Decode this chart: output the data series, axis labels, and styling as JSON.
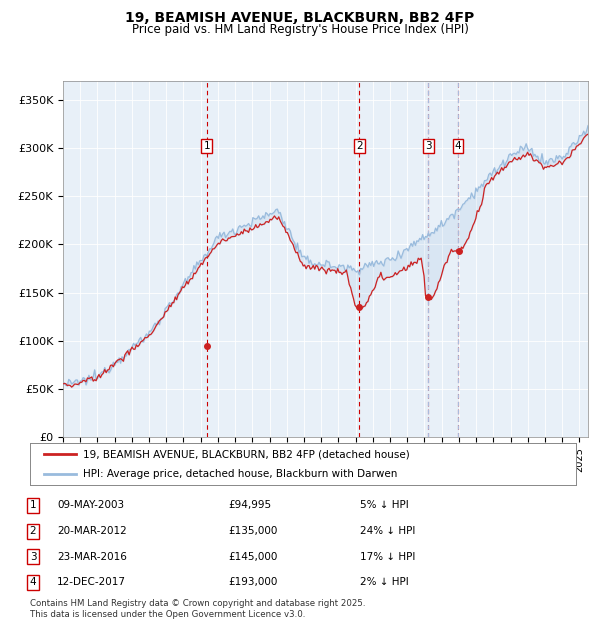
{
  "title": "19, BEAMISH AVENUE, BLACKBURN, BB2 4FP",
  "subtitle": "Price paid vs. HM Land Registry's House Price Index (HPI)",
  "hpi_color": "#99bbdd",
  "price_color": "#cc2222",
  "vline_color": "#cc0000",
  "ylim": [
    0,
    370000
  ],
  "yticks": [
    0,
    50000,
    100000,
    150000,
    200000,
    250000,
    300000,
    350000
  ],
  "ytick_labels": [
    "£0",
    "£50K",
    "£100K",
    "£150K",
    "£200K",
    "£250K",
    "£300K",
    "£350K"
  ],
  "sales": [
    {
      "num": 1,
      "date_x": 2003.35,
      "price": 94995,
      "label": "09-MAY-2003",
      "price_label": "£94,995",
      "pct": "5% ↓ HPI"
    },
    {
      "num": 2,
      "date_x": 2012.22,
      "price": 135000,
      "label": "20-MAR-2012",
      "price_label": "£135,000",
      "pct": "24% ↓ HPI"
    },
    {
      "num": 3,
      "date_x": 2016.22,
      "price": 145000,
      "label": "23-MAR-2016",
      "price_label": "£145,000",
      "pct": "17% ↓ HPI"
    },
    {
      "num": 4,
      "date_x": 2017.95,
      "price": 193000,
      "label": "12-DEC-2017",
      "price_label": "£193,000",
      "pct": "2% ↓ HPI"
    }
  ],
  "legend_entries": [
    "19, BEAMISH AVENUE, BLACKBURN, BB2 4FP (detached house)",
    "HPI: Average price, detached house, Blackburn with Darwen"
  ],
  "footer": "Contains HM Land Registry data © Crown copyright and database right 2025.\nThis data is licensed under the Open Government Licence v3.0.",
  "xmin": 1995.0,
  "xmax": 2025.5
}
